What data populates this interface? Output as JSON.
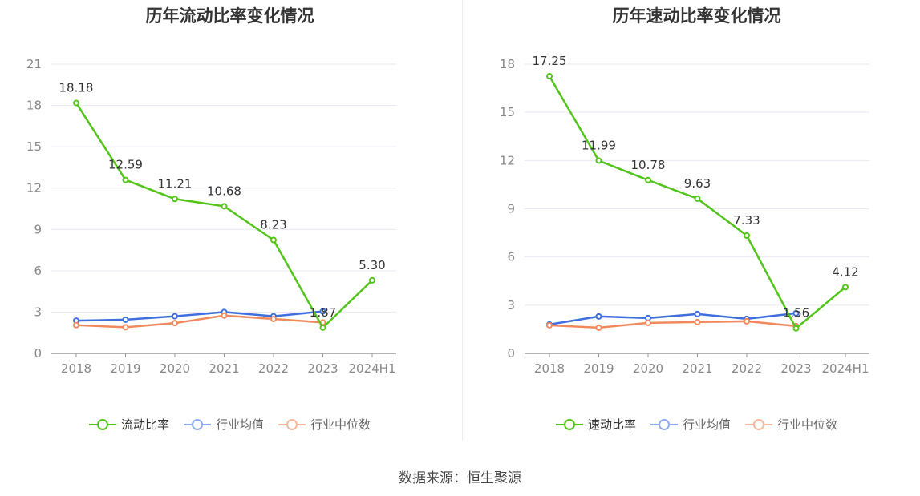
{
  "source": "数据来源：恒生聚源",
  "chart_data": [
    {
      "type": "line",
      "title": "历年流动比率变化情况",
      "categories": [
        "2018",
        "2019",
        "2020",
        "2021",
        "2022",
        "2023",
        "2024H1"
      ],
      "ylim": [
        0,
        21
      ],
      "yticks": [
        0,
        3,
        6,
        9,
        12,
        15,
        18,
        21
      ],
      "series": [
        {
          "name": "流动比率",
          "color": "#52c41a",
          "values": [
            18.18,
            12.59,
            11.21,
            10.68,
            8.23,
            1.87,
            5.3
          ],
          "labels": [
            "18.18",
            "12.59",
            "11.21",
            "10.68",
            "8.23",
            "1.87",
            "5.30"
          ]
        },
        {
          "name": "行业均值",
          "color": "#3e6fdc",
          "values": [
            2.38,
            2.45,
            2.7,
            3.0,
            2.7,
            3.05,
            null
          ]
        },
        {
          "name": "行业中位数",
          "color": "#f08a5d",
          "values": [
            2.05,
            1.9,
            2.2,
            2.75,
            2.5,
            2.25,
            null
          ]
        }
      ]
    },
    {
      "type": "line",
      "title": "历年速动比率变化情况",
      "categories": [
        "2018",
        "2019",
        "2020",
        "2021",
        "2022",
        "2023",
        "2024H1"
      ],
      "ylim": [
        0,
        18
      ],
      "yticks": [
        0,
        3,
        6,
        9,
        12,
        15,
        18
      ],
      "series": [
        {
          "name": "速动比率",
          "color": "#52c41a",
          "values": [
            17.25,
            11.99,
            10.78,
            9.63,
            7.33,
            1.56,
            4.12
          ],
          "labels": [
            "17.25",
            "11.99",
            "10.78",
            "9.63",
            "7.33",
            "1.56",
            "4.12"
          ]
        },
        {
          "name": "行业均值",
          "color": "#3e6fdc",
          "values": [
            1.8,
            2.3,
            2.2,
            2.45,
            2.15,
            2.5,
            null
          ]
        },
        {
          "name": "行业中位数",
          "color": "#f08a5d",
          "values": [
            1.75,
            1.6,
            1.9,
            1.95,
            2.0,
            1.7,
            null
          ]
        }
      ]
    }
  ]
}
